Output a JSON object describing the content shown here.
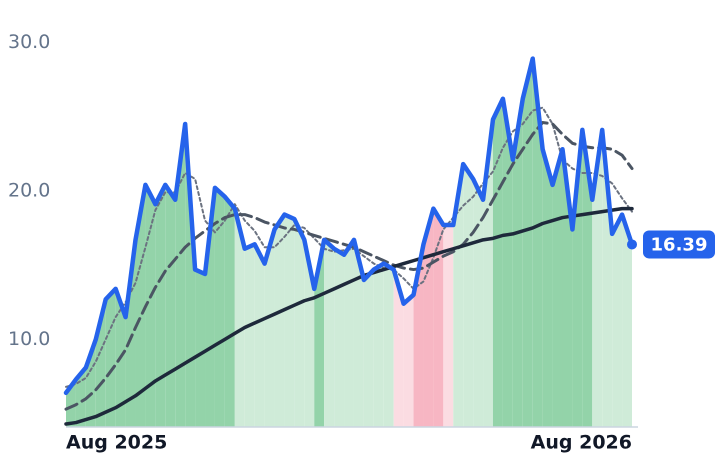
{
  "chart_data": {
    "type": "line",
    "categories": [
      "Aug 2025",
      null,
      null,
      null,
      null,
      null,
      null,
      null,
      null,
      null,
      null,
      null,
      null,
      null,
      null,
      null,
      null,
      null,
      null,
      null,
      null,
      null,
      null,
      null,
      null,
      null,
      null,
      null,
      null,
      null,
      null,
      null,
      null,
      null,
      null,
      null,
      null,
      null,
      null,
      null,
      null,
      null,
      null,
      null,
      null,
      null,
      null,
      null,
      null,
      null,
      null,
      null,
      null,
      null,
      null,
      null,
      null,
      "Aug 2026"
    ],
    "series": [
      {
        "color": "#2563eb",
        "dash": "solid",
        "width": 4.5,
        "values": [
          6.4,
          7.3,
          8.1,
          10.0,
          12.7,
          13.4,
          11.5,
          16.7,
          20.4,
          19.1,
          20.4,
          19.4,
          24.5,
          14.7,
          14.4,
          20.2,
          19.6,
          18.8,
          16.1,
          16.4,
          15.1,
          17.4,
          18.4,
          18.1,
          16.7,
          13.4,
          16.7,
          16.1,
          15.7,
          16.7,
          14.0,
          14.7,
          15.1,
          14.7,
          12.4,
          13.0,
          16.4,
          18.8,
          17.7,
          17.7,
          21.8,
          20.8,
          19.4,
          24.8,
          26.2,
          22.1,
          26.2,
          28.9,
          22.8,
          20.4,
          22.8,
          17.4,
          24.1,
          19.4,
          24.1,
          17.1,
          18.4,
          16.39
        ]
      },
      {
        "color": "#6b7280",
        "dash": "dotted",
        "width": 2,
        "values": [
          6.8,
          7.0,
          7.4,
          8.5,
          10.0,
          11.5,
          12.5,
          13.8,
          16.2,
          18.7,
          19.9,
          19.9,
          21.2,
          20.8,
          18.0,
          17.2,
          18.0,
          19.1,
          18.0,
          17.3,
          16.2,
          16.2,
          16.9,
          17.7,
          17.5,
          16.8,
          16.1,
          15.9,
          16.0,
          16.1,
          15.6,
          15.1,
          14.8,
          14.7,
          14.1,
          13.4,
          13.9,
          15.5,
          17.4,
          18.2,
          19.0,
          19.6,
          20.5,
          21.3,
          22.9,
          24.0,
          24.5,
          25.4,
          25.6,
          24.5,
          22.1,
          21.5,
          21.2,
          21.2,
          21.0,
          20.5,
          19.5,
          18.6
        ]
      },
      {
        "color": "#4b5563",
        "dash": "dashed",
        "width": 3,
        "values": [
          5.3,
          5.6,
          6.0,
          6.6,
          7.4,
          8.3,
          9.3,
          10.8,
          12.2,
          13.5,
          14.6,
          15.4,
          16.2,
          16.8,
          17.3,
          17.8,
          18.2,
          18.4,
          18.4,
          18.2,
          17.9,
          17.7,
          17.5,
          17.4,
          17.2,
          17.0,
          16.8,
          16.6,
          16.4,
          16.2,
          15.9,
          15.6,
          15.3,
          15.0,
          14.8,
          14.7,
          14.8,
          15.2,
          15.6,
          15.9,
          16.4,
          17.2,
          18.2,
          19.4,
          20.6,
          21.8,
          22.8,
          23.8,
          24.6,
          24.5,
          23.8,
          23.2,
          23.0,
          22.9,
          22.9,
          22.8,
          22.4,
          21.5
        ]
      },
      {
        "color": "#1e293b",
        "dash": "solid",
        "width": 3.5,
        "values": [
          4.3,
          4.4,
          4.6,
          4.8,
          5.1,
          5.4,
          5.8,
          6.2,
          6.7,
          7.2,
          7.6,
          8.0,
          8.4,
          8.8,
          9.2,
          9.6,
          10.0,
          10.4,
          10.8,
          11.1,
          11.4,
          11.7,
          12.0,
          12.3,
          12.6,
          12.8,
          13.1,
          13.4,
          13.7,
          14.0,
          14.3,
          14.5,
          14.7,
          14.9,
          15.1,
          15.3,
          15.5,
          15.7,
          15.9,
          16.1,
          16.3,
          16.5,
          16.7,
          16.8,
          17.0,
          17.1,
          17.3,
          17.5,
          17.8,
          18.0,
          18.2,
          18.3,
          18.4,
          18.5,
          18.6,
          18.7,
          18.8,
          18.8
        ]
      }
    ],
    "band_colors": [
      "#93d3a9",
      "#93d3a9",
      "#93d3a9",
      "#93d3a9",
      "#93d3a9",
      "#93d3a9",
      "#93d3a9",
      "#93d3a9",
      "#93d3a9",
      "#93d3a9",
      "#93d3a9",
      "#93d3a9",
      "#93d3a9",
      "#93d3a9",
      "#93d3a9",
      "#93d3a9",
      "#93d3a9",
      "#cfebd8",
      "#cfebd8",
      "#cfebd8",
      "#cfebd8",
      "#cfebd8",
      "#cfebd8",
      "#cfebd8",
      "#cfebd8",
      "#93d3a9",
      "#cfebd8",
      "#cfebd8",
      "#cfebd8",
      "#cfebd8",
      "#cfebd8",
      "#cfebd8",
      "#cfebd8",
      "#fbdce2",
      "#fbdce2",
      "#f7b6c3",
      "#f7b6c3",
      "#f7b6c3",
      "#fbdce2",
      "#cfebd8",
      "#cfebd8",
      "#cfebd8",
      "#cfebd8",
      "#93d3a9",
      "#93d3a9",
      "#93d3a9",
      "#93d3a9",
      "#93d3a9",
      "#93d3a9",
      "#93d3a9",
      "#93d3a9",
      "#93d3a9",
      "#93d3a9",
      "#cfebd8",
      "#cfebd8",
      "#cfebd8",
      "#cfebd8",
      "#cfebd8"
    ],
    "ylim": [
      4.1,
      31.5
    ],
    "yticks": [
      {
        "value": 10,
        "label": "10.0"
      },
      {
        "value": 20,
        "label": "20.0"
      },
      {
        "value": 30,
        "label": "30.0"
      }
    ],
    "grid": false
  }
}
